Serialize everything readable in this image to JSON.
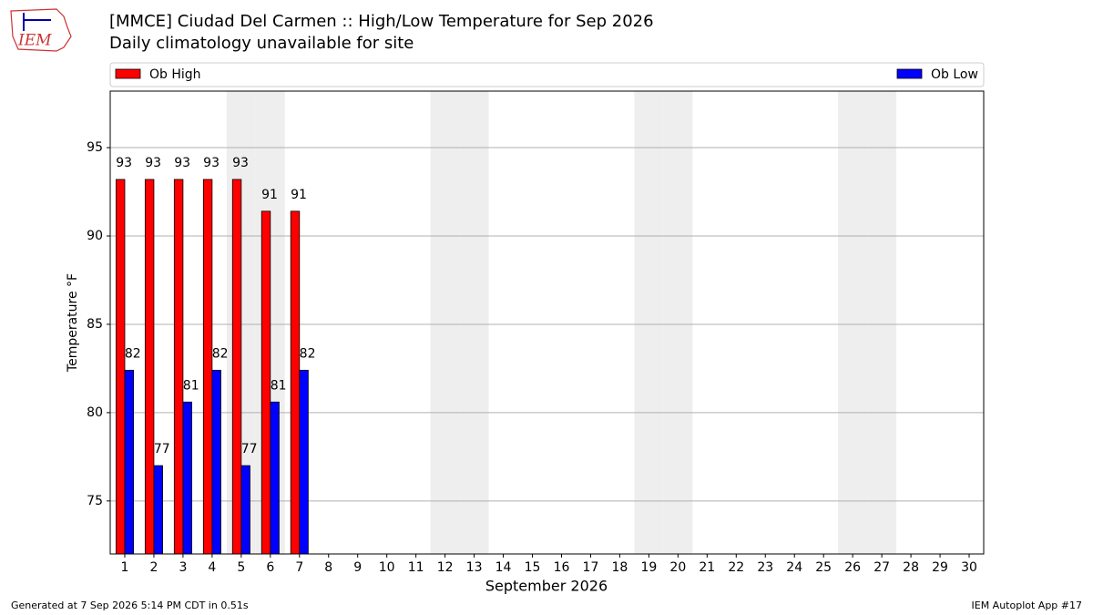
{
  "logo_text": "IEM",
  "chart_data": {
    "type": "bar",
    "title": "[MMCE] Ciudad Del Carmen :: High/Low Temperature for Sep 2026",
    "subtitle": "Daily climatology unavailable for site",
    "x_label": "September 2026",
    "y_label": "Temperature °F",
    "categories": [
      1,
      2,
      3,
      4,
      5,
      6,
      7,
      8,
      9,
      10,
      11,
      12,
      13,
      14,
      15,
      16,
      17,
      18,
      19,
      20,
      21,
      22,
      23,
      24,
      25,
      26,
      27,
      28,
      29,
      30
    ],
    "shaded": [
      5,
      6,
      12,
      13,
      19,
      20,
      26,
      27
    ],
    "series": [
      {
        "name": "Ob High",
        "color": "#ff0000",
        "values": [
          93.2,
          93.2,
          93.2,
          93.2,
          93.2,
          91.4,
          91.4,
          null,
          null,
          null,
          null,
          null,
          null,
          null,
          null,
          null,
          null,
          null,
          null,
          null,
          null,
          null,
          null,
          null,
          null,
          null,
          null,
          null,
          null,
          null
        ],
        "value_labels": [
          "93",
          "93",
          "93",
          "93",
          "93",
          "91",
          "91",
          null,
          null,
          null,
          null,
          null,
          null,
          null,
          null,
          null,
          null,
          null,
          null,
          null,
          null,
          null,
          null,
          null,
          null,
          null,
          null,
          null,
          null,
          null
        ]
      },
      {
        "name": "Ob Low",
        "color": "#0000ff",
        "values": [
          82.4,
          77,
          80.6,
          82.4,
          77,
          80.6,
          82.4,
          null,
          null,
          null,
          null,
          null,
          null,
          null,
          null,
          null,
          null,
          null,
          null,
          null,
          null,
          null,
          null,
          null,
          null,
          null,
          null,
          null,
          null,
          null
        ],
        "value_labels": [
          "82",
          "77",
          "81",
          "82",
          "77",
          "81",
          "82",
          null,
          null,
          null,
          null,
          null,
          null,
          null,
          null,
          null,
          null,
          null,
          null,
          null,
          null,
          null,
          null,
          null,
          null,
          null,
          null,
          null,
          null,
          null
        ]
      }
    ],
    "ylim": [
      72,
      98.2
    ],
    "yticks": [
      75,
      80,
      85,
      90,
      95
    ],
    "grid": true,
    "legend": "top",
    "footer_left": "Generated at 7 Sep 2026 5:14 PM CDT in 0.51s",
    "footer_right": "IEM Autoplot App #17"
  }
}
